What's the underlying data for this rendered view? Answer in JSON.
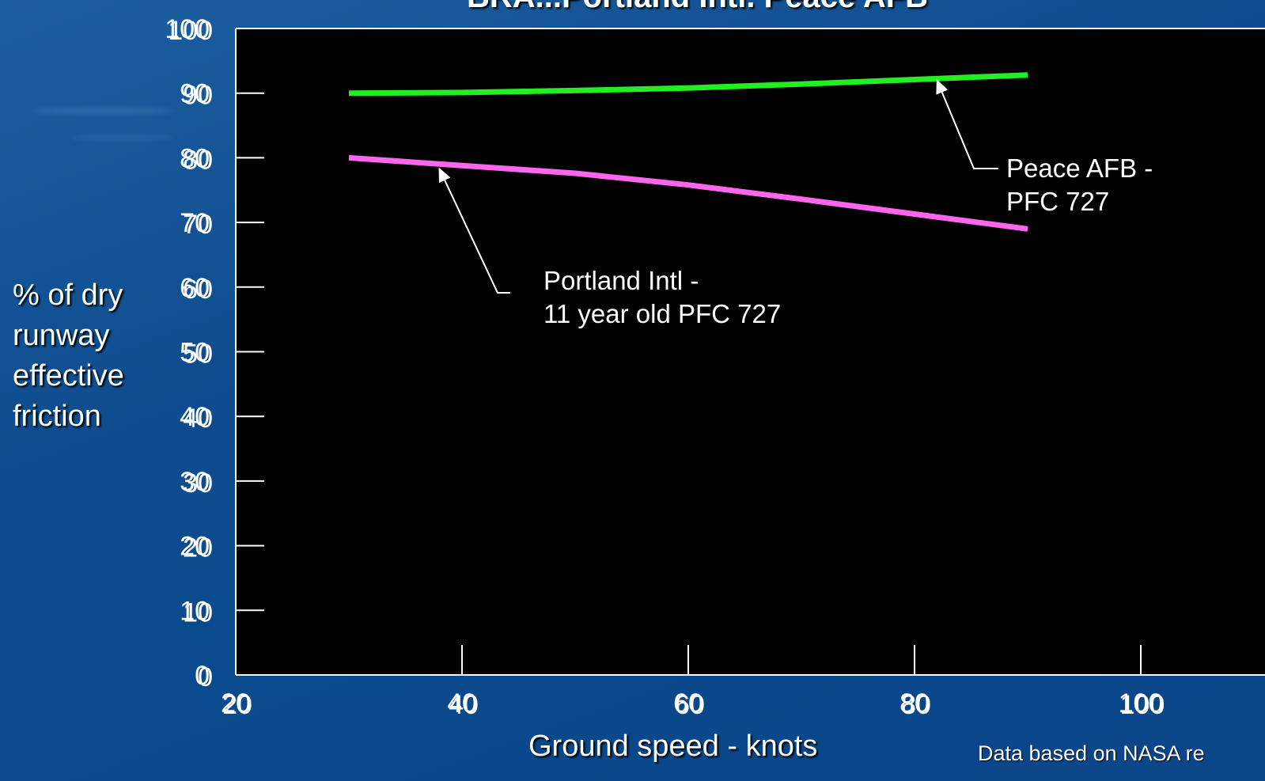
{
  "chart_data": {
    "type": "line",
    "title": "BRA...Portland Intl. Peace AFB",
    "xlabel": "Ground speed - knots",
    "ylabel_lines": [
      "% of dry",
      "runway",
      "effective",
      "friction"
    ],
    "xlim": [
      20,
      110
    ],
    "ylim": [
      0,
      100
    ],
    "x_ticks": [
      20,
      40,
      60,
      80,
      100
    ],
    "y_ticks": [
      0,
      10,
      20,
      30,
      40,
      50,
      60,
      70,
      80,
      90,
      100
    ],
    "grid": false,
    "series": [
      {
        "name": "Peace AFB - PFC 727",
        "color": "#22ee22",
        "x": [
          30,
          40,
          50,
          60,
          70,
          80,
          90
        ],
        "y": [
          90,
          90.1,
          90.4,
          90.8,
          91.4,
          92.1,
          92.8
        ]
      },
      {
        "name": "Portland Intl - 11 year old PFC 727",
        "color": "#ff66ee",
        "x": [
          30,
          40,
          50,
          60,
          70,
          80,
          90
        ],
        "y": [
          80,
          78.8,
          77.6,
          75.8,
          73.6,
          71.3,
          69
        ]
      }
    ],
    "annotations": [
      {
        "lines": [
          "Peace AFB -",
          "PFC 727"
        ],
        "arrow_to": {
          "x": 82,
          "y": 92.3
        }
      },
      {
        "lines": [
          "Portland Intl -",
          "11 year old PFC 727"
        ],
        "arrow_to": {
          "x": 38,
          "y": 78.9
        }
      }
    ]
  },
  "header": {
    "title_fragment": "BRA...Portland Intl. Peace AFB"
  },
  "footer": {
    "source_note": "Data based on NASA re"
  }
}
